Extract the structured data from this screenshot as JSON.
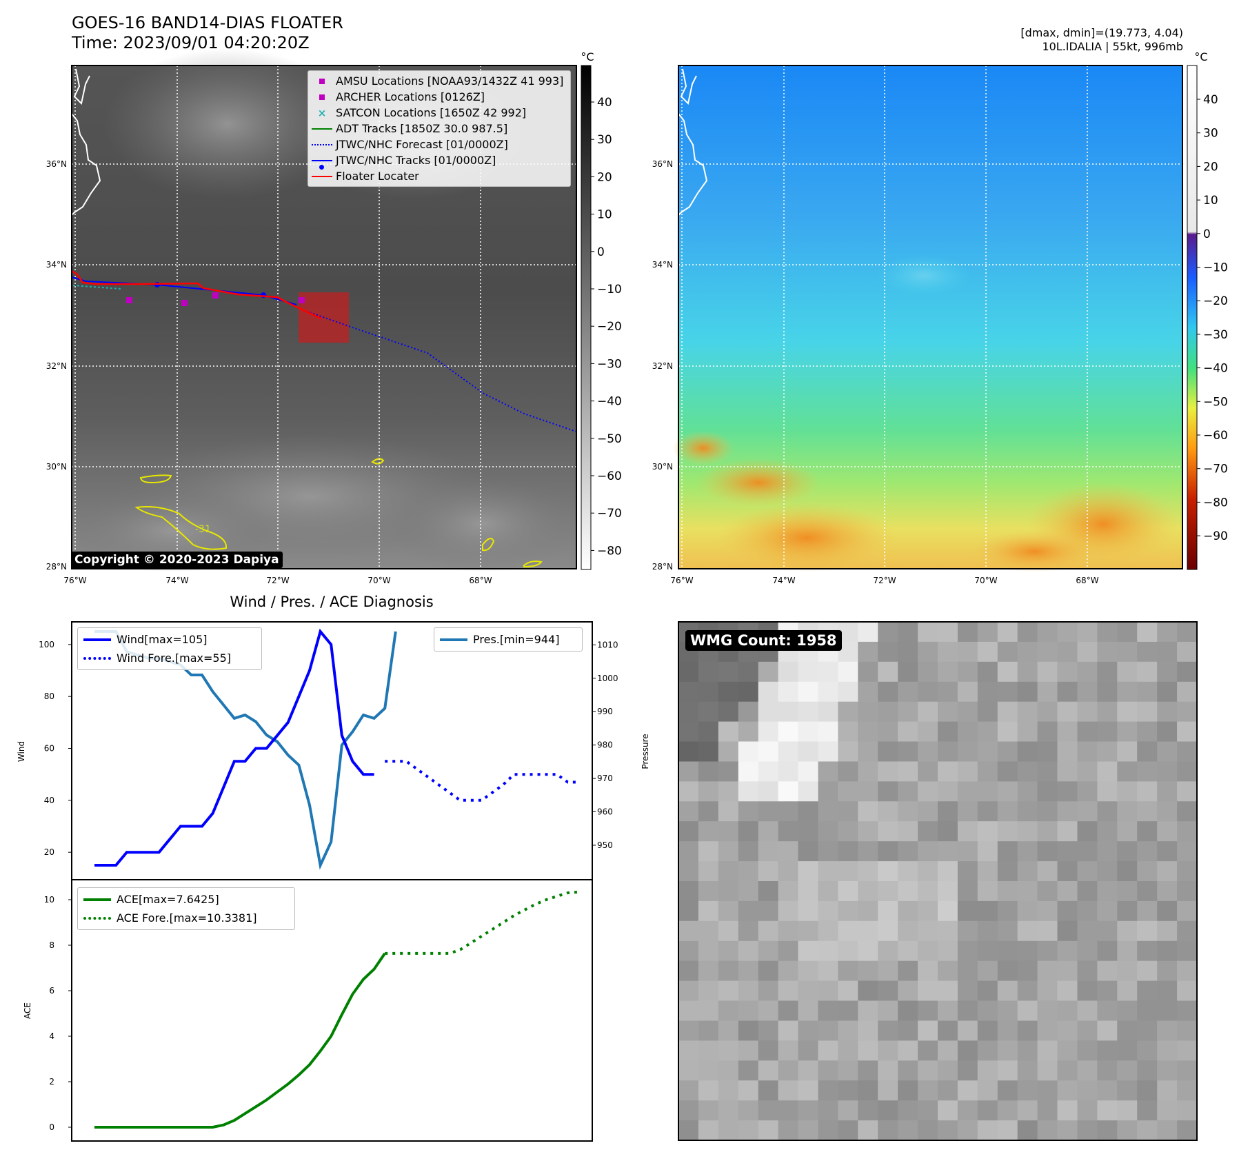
{
  "header": {
    "title_line1": "GOES-16 BAND14-DIAS FLOATER",
    "title_line2": "Time: 2023/09/01 04:20:20Z",
    "right_line1": "[dmax, dmin]=(19.773, 4.04)",
    "right_line2": "10L.IDALIA | 55kt, 996mb"
  },
  "ir_panel": {
    "lat_labels": [
      "36°N",
      "34°N",
      "32°N",
      "30°N",
      "28°N"
    ],
    "lon_labels": [
      "76°W",
      "74°W",
      "72°W",
      "70°W",
      "68°W"
    ],
    "colorbar_unit": "°C",
    "colorbar_ticks": [
      "40",
      "30",
      "20",
      "10",
      "0",
      "−10",
      "−20",
      "−30",
      "−40",
      "−50",
      "−60",
      "−70",
      "−80"
    ],
    "contour_label": "-31",
    "copyright": "Copyright © 2020-2023 Dapiya",
    "legend": [
      {
        "label": "AMSU Locations [NOAA93/1432Z 41 993]",
        "symbol": "square",
        "color": "#c000c0"
      },
      {
        "label": "ARCHER Locations [0126Z]",
        "symbol": "square",
        "color": "#c000c0"
      },
      {
        "label": "SATCON Locations [1650Z 42 992]",
        "symbol": "x",
        "color": "#20b0b0"
      },
      {
        "label": "ADT Tracks [1850Z 30.0 987.5]",
        "symbol": "line",
        "color": "#008000"
      },
      {
        "label": "JTWC/NHC Forecast [01/0000Z]",
        "symbol": "dotted",
        "color": "#0000ff"
      },
      {
        "label": "JTWC/NHC Tracks [01/0000Z]",
        "symbol": "line-dot",
        "color": "#0000ff"
      },
      {
        "label": "Floater Locater",
        "symbol": "line",
        "color": "#ff0000"
      }
    ]
  },
  "color_panel": {
    "lat_labels": [
      "36°N",
      "34°N",
      "32°N",
      "30°N",
      "28°N"
    ],
    "lon_labels": [
      "76°W",
      "74°W",
      "72°W",
      "70°W",
      "68°W"
    ],
    "colorbar_unit": "°C",
    "colorbar_ticks": [
      "40",
      "30",
      "20",
      "10",
      "0",
      "−10",
      "−20",
      "−30",
      "−40",
      "−50",
      "−60",
      "−70",
      "−80",
      "−90"
    ]
  },
  "diag_panel": {
    "title": "Wind / Pres. / ACE Diagnosis",
    "wind_ylabel": "Wind",
    "pressure_ylabel": "Pressure",
    "ace_ylabel": "ACE",
    "legend_wind": "Wind[max=105]",
    "legend_wind_fore": "Wind Fore.[max=55]",
    "legend_pres": "Pres.[min=944]",
    "legend_ace": "ACE[max=7.6425]",
    "legend_ace_fore": "ACE Fore.[max=10.3381]"
  },
  "wmg_panel": {
    "label": "WMG Count: 1958"
  },
  "chart_data": [
    {
      "type": "line",
      "title": "Wind / Pres. / ACE Diagnosis",
      "ylabel": "Wind",
      "ylim": [
        10,
        108
      ],
      "yticks": [
        20,
        40,
        60,
        80,
        100
      ],
      "series": [
        {
          "name": "Wind[max=105]",
          "color": "#0000ff",
          "style": "solid",
          "x": [
            0,
            1,
            2,
            3,
            4,
            5,
            6,
            7,
            8,
            9,
            10,
            11,
            12,
            13,
            14,
            15,
            16,
            17,
            18,
            19,
            20,
            21,
            22,
            23,
            24,
            25,
            26
          ],
          "values": [
            15,
            15,
            15,
            20,
            20,
            20,
            20,
            25,
            30,
            30,
            30,
            35,
            45,
            55,
            55,
            60,
            60,
            65,
            70,
            80,
            90,
            105,
            100,
            65,
            55,
            50,
            50
          ]
        },
        {
          "name": "Wind Fore.[max=55]",
          "color": "#0000ff",
          "style": "dotted",
          "x": [
            27,
            28,
            29,
            30,
            31,
            32,
            33,
            34,
            35,
            36,
            37,
            38,
            39,
            40,
            41,
            42,
            43,
            44,
            45
          ],
          "values": [
            55,
            55,
            55,
            52,
            49,
            46,
            43,
            40,
            40,
            40,
            43,
            46,
            50,
            50,
            50,
            50,
            50,
            47,
            47
          ]
        }
      ]
    },
    {
      "type": "line",
      "ylabel": "Pressure",
      "ylim": [
        940,
        1014
      ],
      "yticks": [
        950,
        960,
        970,
        980,
        990,
        1000,
        1010
      ],
      "series": [
        {
          "name": "Pres.[min=944]",
          "color": "#1f77b4",
          "style": "solid",
          "x": [
            0,
            1,
            2,
            3,
            4,
            5,
            6,
            7,
            8,
            9,
            10,
            11,
            12,
            13,
            14,
            15,
            16,
            17,
            18,
            19,
            20,
            21,
            22,
            23,
            24,
            25,
            26,
            27,
            28
          ],
          "values": [
            1014,
            1014,
            1014,
            1008,
            1007,
            1006,
            1006,
            1005,
            1004,
            1001,
            1001,
            996,
            992,
            988,
            989,
            987,
            983,
            981,
            977,
            974,
            962,
            944,
            951,
            980,
            984,
            989,
            988,
            991,
            1014
          ]
        }
      ]
    },
    {
      "type": "line",
      "ylabel": "ACE",
      "ylim": [
        -0.4,
        10.9
      ],
      "yticks": [
        0,
        2,
        4,
        6,
        8,
        10
      ],
      "series": [
        {
          "name": "ACE[max=7.6425]",
          "color": "#008000",
          "style": "solid",
          "x": [
            0,
            1,
            2,
            3,
            4,
            5,
            6,
            7,
            8,
            9,
            10,
            11,
            12,
            13,
            14,
            15,
            16,
            17,
            18,
            19,
            20,
            21,
            22,
            23,
            24,
            25,
            26,
            27
          ],
          "values": [
            0,
            0,
            0,
            0,
            0,
            0,
            0,
            0,
            0,
            0,
            0,
            0,
            0.1,
            0.3,
            0.6,
            0.9,
            1.2,
            1.55,
            1.9,
            2.3,
            2.75,
            3.35,
            4.0,
            4.95,
            5.85,
            6.5,
            6.95,
            7.64
          ]
        },
        {
          "name": "ACE Fore.[max=10.3381]",
          "color": "#008000",
          "style": "dotted",
          "x": [
            27,
            28,
            29,
            30,
            31,
            32,
            33,
            34,
            35,
            36,
            37,
            38,
            39,
            40,
            41,
            42,
            43,
            44,
            45
          ],
          "values": [
            7.64,
            7.64,
            7.64,
            7.64,
            7.64,
            7.64,
            7.64,
            7.8,
            8.1,
            8.4,
            8.7,
            9.0,
            9.3,
            9.55,
            9.8,
            10.0,
            10.15,
            10.3,
            10.34
          ]
        }
      ]
    }
  ]
}
